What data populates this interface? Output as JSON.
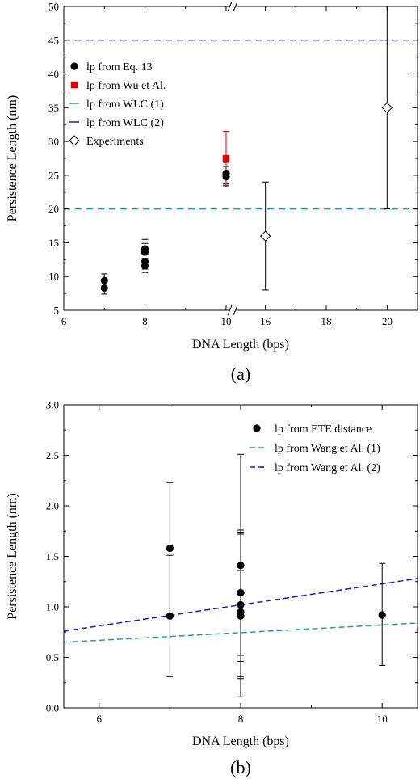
{
  "chart_data": [
    {
      "type": "scatter",
      "caption": "(a)",
      "xlabel": "DNA Length (bps)",
      "ylabel": "Persistence Length (nm)",
      "ylim": [
        5,
        50
      ],
      "y_ticks": [
        5,
        10,
        15,
        20,
        25,
        30,
        35,
        40,
        45,
        50
      ],
      "x_axis_broken": true,
      "x_segments": [
        {
          "range": [
            6,
            10.1
          ],
          "ticks": [
            6,
            8,
            10
          ]
        },
        {
          "range": [
            15,
            21
          ],
          "ticks": [
            16,
            18,
            20
          ]
        }
      ],
      "legend_placement": "left",
      "series": [
        {
          "name": "lp from Eq. 13",
          "marker": "filled-circle",
          "color": "#000000",
          "points": [
            {
              "x": 7,
              "y": 8.3,
              "err": 0.9
            },
            {
              "x": 7,
              "y": 9.4,
              "err": 1.0
            },
            {
              "x": 8,
              "y": 11.6,
              "err": 1.0
            },
            {
              "x": 8,
              "y": 12.2,
              "err": 1.1
            },
            {
              "x": 8,
              "y": 13.6,
              "err": 1.3
            },
            {
              "x": 8,
              "y": 14.1,
              "err": 1.4
            },
            {
              "x": 10,
              "y": 24.8,
              "err": 1.5
            },
            {
              "x": 10,
              "y": 25.3,
              "err": 1.6
            }
          ]
        },
        {
          "name": "lp from Wu et Al.",
          "marker": "filled-square",
          "color": "#e00000",
          "points": [
            {
              "x": 10,
              "y": 27.5,
              "err": 4.0
            }
          ]
        },
        {
          "name": "lp from WLC (1)",
          "marker": "dashed-line",
          "color": "#2e9a9a",
          "value": 20
        },
        {
          "name": "lp from WLC (2)",
          "marker": "dashed-line",
          "color": "#1a1ad0",
          "value": 45
        },
        {
          "name": "Experiments",
          "marker": "open-diamond",
          "color": "#000000",
          "points": [
            {
              "x": 16,
              "y": 16,
              "low": 8,
              "high": 24
            },
            {
              "x": 20,
              "y": 35,
              "low": 20,
              "high": 50
            }
          ]
        }
      ]
    },
    {
      "type": "scatter",
      "caption": "(b)",
      "xlabel": "DNA Length (bps)",
      "ylabel": "Persistence Length (nm)",
      "xlim": [
        5.5,
        10.5
      ],
      "ylim": [
        0,
        3.0
      ],
      "x_ticks": [
        6,
        8,
        10
      ],
      "y_ticks": [
        "0.0",
        "0.5",
        "1.0",
        "1.5",
        "2.0",
        "2.5",
        "3.0"
      ],
      "legend_placement": "top-right",
      "series": [
        {
          "name": "lp from ETE distance",
          "marker": "filled-circle",
          "color": "#000000",
          "points": [
            {
              "x": 7,
              "y": 1.58,
              "low": 0.91,
              "high": 2.23
            },
            {
              "x": 7,
              "y": 0.91,
              "low": 0.31,
              "high": 1.51
            },
            {
              "x": 8,
              "y": 1.41,
              "low": 0.31,
              "high": 2.51
            },
            {
              "x": 8,
              "y": 1.14,
              "low": 0.52,
              "high": 1.76
            },
            {
              "x": 8,
              "y": 1.02,
              "low": 0.29,
              "high": 1.74
            },
            {
              "x": 8,
              "y": 0.95,
              "low": 0.11,
              "high": 1.72
            },
            {
              "x": 8,
              "y": 0.91,
              "low": 0.46,
              "high": 1.36
            },
            {
              "x": 10,
              "y": 0.92,
              "low": 0.42,
              "high": 1.43
            }
          ]
        },
        {
          "name": "lp from Wang et Al. (1)",
          "marker": "dashed-line",
          "color": "#2e9a9a",
          "line_points": [
            {
              "x": 5.5,
              "y": 0.65
            },
            {
              "x": 10.5,
              "y": 0.84
            }
          ]
        },
        {
          "name": "lp from Wang et Al. (2)",
          "marker": "dashed-line",
          "color": "#1a1ad0",
          "line_points": [
            {
              "x": 5.5,
              "y": 0.76
            },
            {
              "x": 10.5,
              "y": 1.28
            }
          ]
        }
      ]
    }
  ]
}
